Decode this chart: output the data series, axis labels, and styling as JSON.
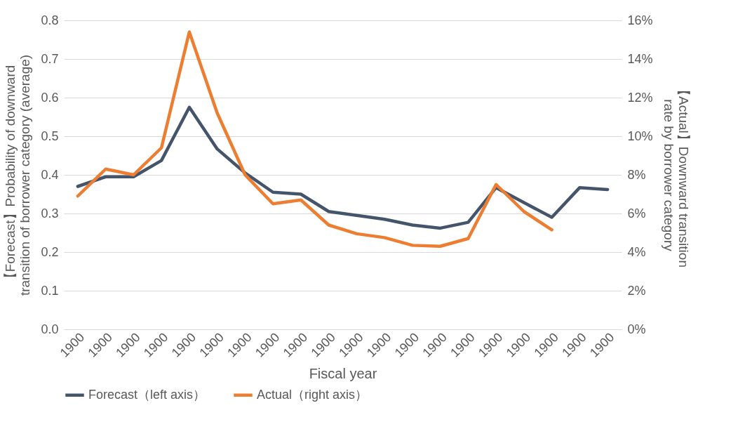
{
  "chart_data": {
    "type": "line",
    "categories": [
      "1900",
      "1900",
      "1900",
      "1900",
      "1900",
      "1900",
      "1900",
      "1900",
      "1900",
      "1900",
      "1900",
      "1900",
      "1900",
      "1900",
      "1900",
      "1900",
      "1900",
      "1900",
      "1900",
      "1900"
    ],
    "xlabel": "Fiscal year",
    "ylabel": "【Forecast】Probability of downward transition of borrower category (average)",
    "y2label": "【Actual】Downward transition rate by borrower category",
    "series": [
      {
        "name": "Forecast（left axis）",
        "color": "#44546a",
        "values": [
          0.37,
          0.395,
          0.395,
          0.437,
          0.575,
          0.467,
          0.405,
          0.355,
          0.35,
          0.305,
          0.295,
          0.285,
          0.27,
          0.262,
          0.277,
          0.367,
          0.328,
          0.29,
          0.367,
          0.362
        ]
      },
      {
        "name": "Actual（right axis）",
        "color": "#ed7d31",
        "axis": "y2",
        "values": [
          6.9,
          8.3,
          8.0,
          9.4,
          15.4,
          11.2,
          8.0,
          6.5,
          6.7,
          5.4,
          4.95,
          4.75,
          4.35,
          4.3,
          4.7,
          7.5,
          6.1,
          5.15,
          null,
          null
        ]
      }
    ],
    "ylim": [
      0,
      0.8
    ],
    "yticks": [
      {
        "value": 0,
        "label": "0.0"
      },
      {
        "value": 0.1,
        "label": "0.1"
      },
      {
        "value": 0.2,
        "label": "0.2"
      },
      {
        "value": 0.3,
        "label": "0.3"
      },
      {
        "value": 0.4,
        "label": "0.4"
      },
      {
        "value": 0.5,
        "label": "0.5"
      },
      {
        "value": 0.6,
        "label": "0.6"
      },
      {
        "value": 0.7,
        "label": "0.7"
      },
      {
        "value": 0.8,
        "label": "0.8"
      }
    ],
    "y2lim": [
      0,
      16
    ],
    "y2ticks": [
      {
        "value": 0,
        "label": "0%"
      },
      {
        "value": 2,
        "label": "2%"
      },
      {
        "value": 4,
        "label": "4%"
      },
      {
        "value": 6,
        "label": "6%"
      },
      {
        "value": 8,
        "label": "8%"
      },
      {
        "value": 10,
        "label": "10%"
      },
      {
        "value": 12,
        "label": "12%"
      },
      {
        "value": 14,
        "label": "14%"
      },
      {
        "value": 16,
        "label": "16%"
      }
    ],
    "grid": "y",
    "legend": "bottom",
    "marker": "none",
    "line_style": "solid"
  }
}
